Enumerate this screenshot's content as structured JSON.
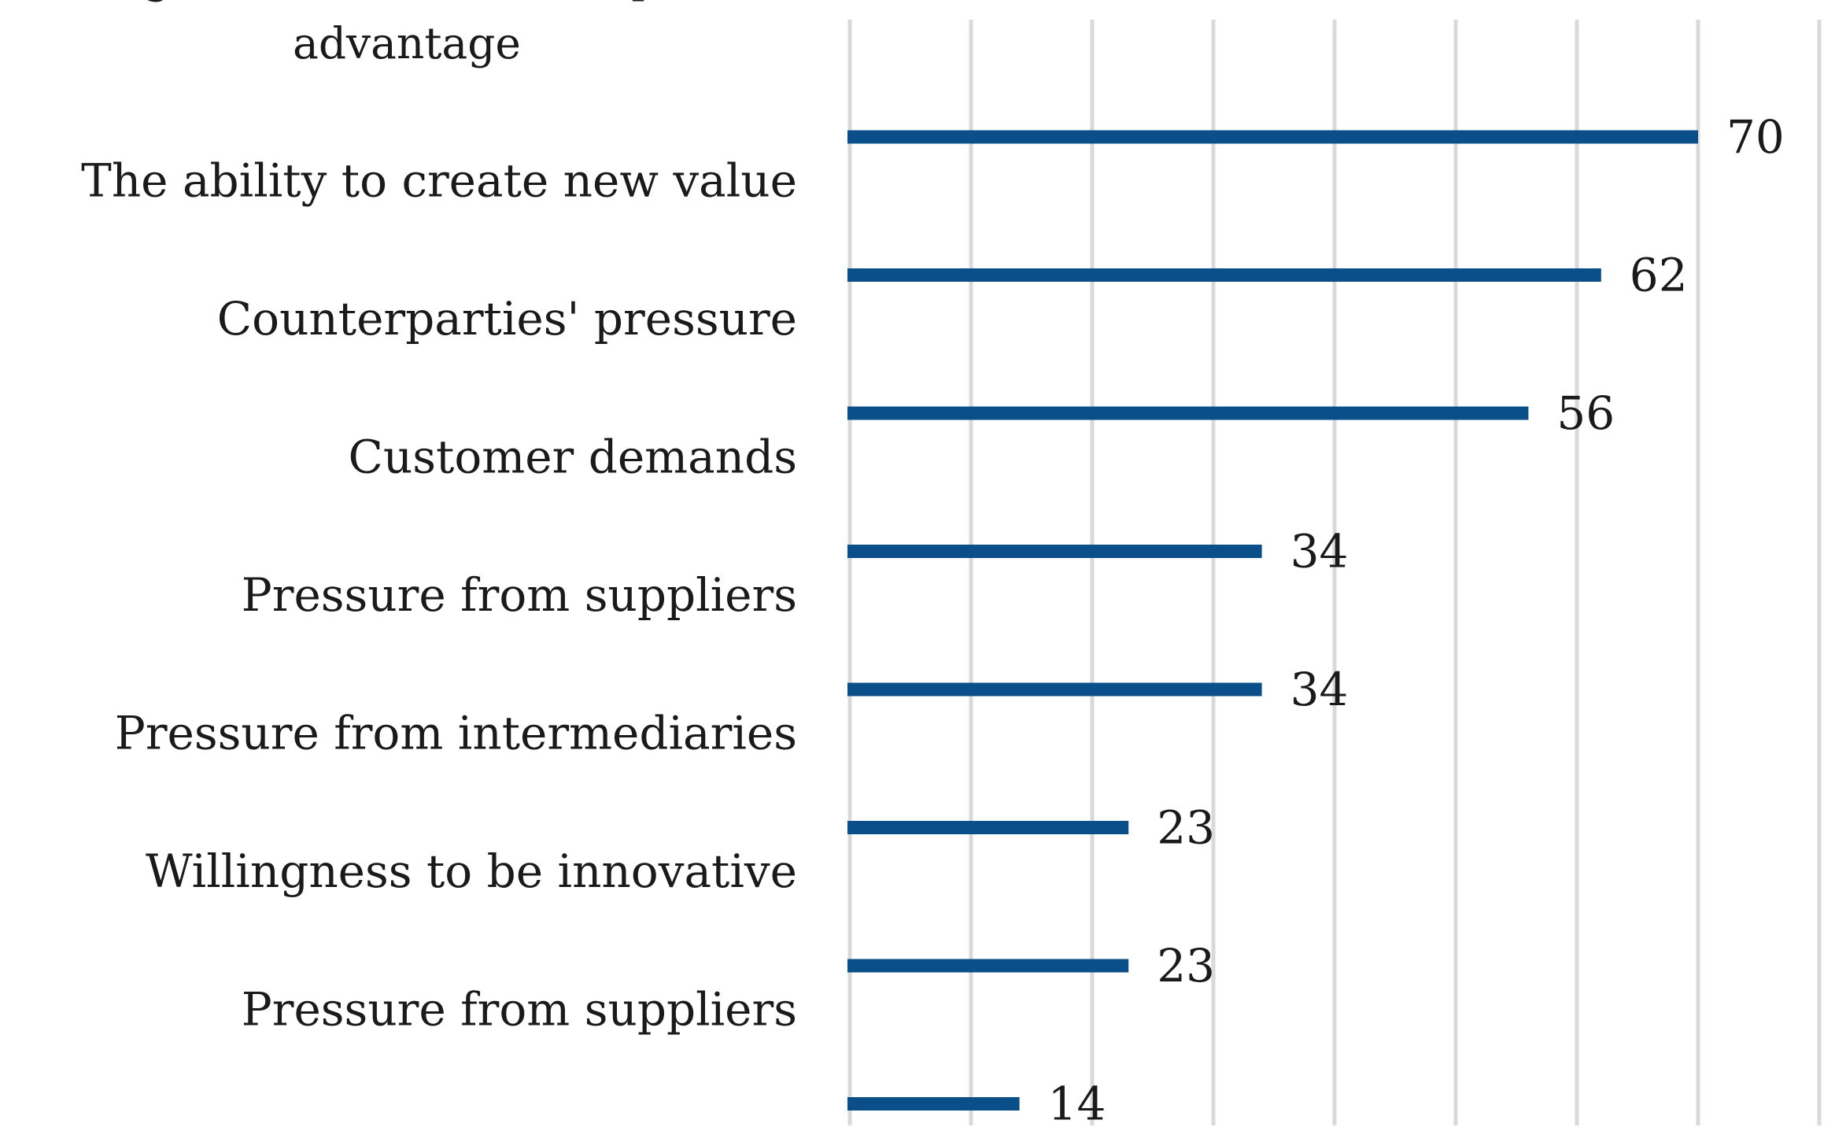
{
  "chart_data": {
    "type": "bar",
    "orientation": "horizontal",
    "title": "",
    "xlabel": "",
    "ylabel": "",
    "categories": [
      "Willingness to increase competitive advantage",
      "The ability to create new value",
      "Counterparties' pressure",
      "Customer demands",
      "Pressure from suppliers",
      "Pressure from intermediaries",
      "Willingness to be innovative",
      "Pressure from suppliers"
    ],
    "category_lines": [
      [
        "Willingness to increase competitive",
        "advantage"
      ],
      [
        "The ability to create new value"
      ],
      [
        "Counterparties' pressure"
      ],
      [
        "Customer demands"
      ],
      [
        "Pressure from suppliers"
      ],
      [
        "Pressure from intermediaries"
      ],
      [
        "Willingness to be innovative"
      ],
      [
        "Pressure from suppliers"
      ]
    ],
    "values": [
      70,
      62,
      56,
      34,
      34,
      23,
      23,
      14
    ],
    "xlim": [
      0,
      80
    ],
    "grid": true,
    "grid_step": 10,
    "data_labels": true,
    "bar_color": "#0b4f8a",
    "grid_color": "#d9d9d9"
  }
}
